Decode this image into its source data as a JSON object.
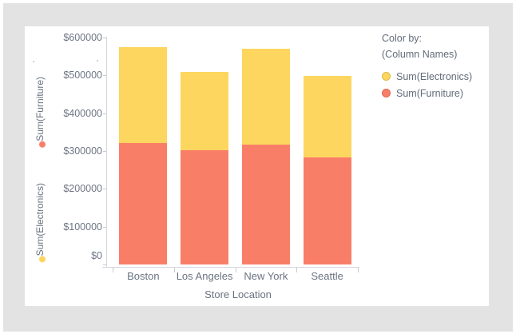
{
  "window": {
    "background": "#e3e3e3",
    "panel_background": "#ffffff"
  },
  "legend": {
    "header_line1": "Color by:",
    "header_line2": "(Column Names)",
    "items": [
      {
        "label": "Sum(Electronics)",
        "color": "#fcd65f",
        "border": "#ddb94d"
      },
      {
        "label": "Sum(Furniture)",
        "color": "#f97e68",
        "border": "#dd685a"
      }
    ]
  },
  "left_axis_measures": [
    {
      "label": "Sum(Furniture)",
      "dot_color": "#f97e68"
    },
    {
      "label": "Sum(Electronics)",
      "dot_color": "#fcd65f"
    }
  ],
  "chart_data": {
    "type": "bar",
    "stacked": true,
    "title": "",
    "xlabel": "Store Location",
    "categories": [
      "Boston",
      "Los Angeles",
      "New York",
      "Seattle"
    ],
    "series": [
      {
        "name": "Sum(Furniture)",
        "color": "#f97e68",
        "values": [
          321000,
          302000,
          316000,
          283000
        ]
      },
      {
        "name": "Sum(Electronics)",
        "color": "#fcd65f",
        "values": [
          253000,
          208000,
          255000,
          216000
        ]
      }
    ],
    "totals": [
      574000,
      510000,
      571000,
      499000
    ],
    "ylim": [
      0,
      600000
    ],
    "y_tick_step": 100000,
    "y_tick_prefix": "$",
    "grid": false,
    "legend_position": "right"
  }
}
